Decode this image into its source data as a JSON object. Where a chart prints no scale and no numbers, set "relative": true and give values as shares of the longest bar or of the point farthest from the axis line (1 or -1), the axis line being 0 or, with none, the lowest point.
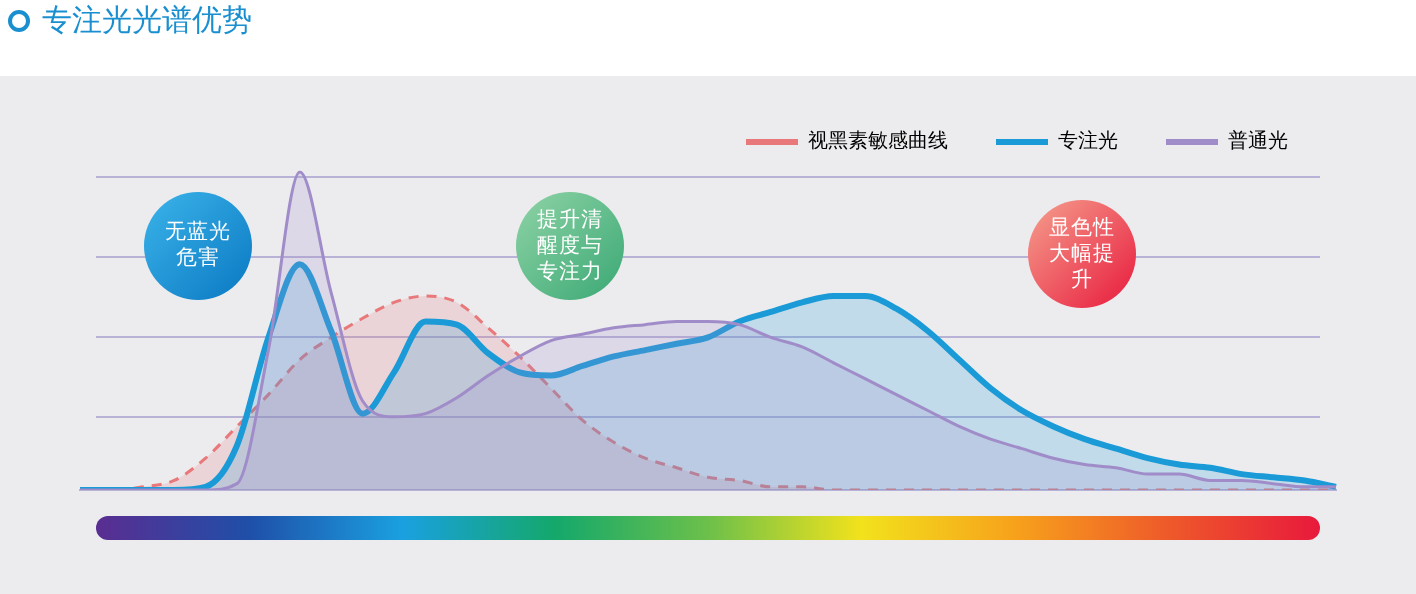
{
  "chart_data": {
    "type": "area",
    "title": "专注光光谱优势",
    "relative": true,
    "legend": "top right",
    "marker": "none",
    "categories": [
      null,
      null,
      null,
      null,
      null,
      null,
      null,
      null,
      null,
      null,
      null,
      null,
      null,
      null,
      null,
      null,
      null,
      null,
      null,
      null,
      null,
      null,
      null,
      null,
      null,
      null,
      null,
      null,
      null,
      null,
      null,
      null,
      null,
      null,
      null,
      null,
      null,
      null,
      null,
      null,
      null
    ],
    "series": [
      {
        "name": "视黑素敏感曲线",
        "color": "#e8787a",
        "line_style": "dashed",
        "values": [
          0,
          0,
          0.01,
          0.03,
          0.1,
          0.2,
          0.3,
          0.41,
          0.48,
          0.54,
          0.59,
          0.61,
          0.59,
          0.51,
          0.42,
          0.32,
          0.22,
          0.15,
          0.1,
          0.07,
          0.04,
          0.03,
          0.01,
          0.01,
          0,
          0,
          0,
          0,
          0,
          0,
          0,
          0,
          0,
          0,
          0,
          0,
          0,
          0,
          0,
          0,
          0
        ]
      },
      {
        "name": "专注光",
        "color": "#1a9ad6",
        "line_style": "solid",
        "values": [
          0,
          0,
          0,
          0,
          0.01,
          0.14,
          0.48,
          0.71,
          0.5,
          0.24,
          0.37,
          0.53,
          0.52,
          0.43,
          0.37,
          0.36,
          0.39,
          0.42,
          0.44,
          0.46,
          0.48,
          0.53,
          0.56,
          0.59,
          0.61,
          0.61,
          0.57,
          0.5,
          0.41,
          0.32,
          0.25,
          0.2,
          0.16,
          0.13,
          0.1,
          0.08,
          0.07,
          0.05,
          0.04,
          0.03,
          0.01
        ]
      },
      {
        "name": "普通光",
        "color": "#a08cc8",
        "line_style": "solid",
        "values": [
          0,
          0,
          0,
          0,
          0,
          0.02,
          0.44,
          1,
          0.62,
          0.28,
          0.23,
          0.24,
          0.29,
          0.36,
          0.42,
          0.47,
          0.49,
          0.51,
          0.52,
          0.53,
          0.53,
          0.52,
          0.48,
          0.45,
          0.4,
          0.35,
          0.3,
          0.25,
          0.2,
          0.16,
          0.13,
          0.1,
          0.08,
          0.07,
          0.05,
          0.05,
          0.03,
          0.03,
          0.02,
          0.01,
          0.01
        ]
      }
    ],
    "annotations": [
      "无蓝光危害",
      "提升清醒度与专注力",
      "显色性大幅提升"
    ]
  }
}
